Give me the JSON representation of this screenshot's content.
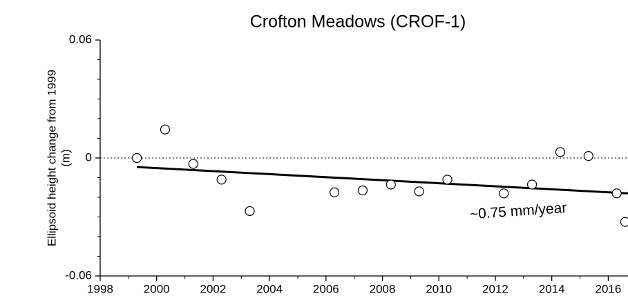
{
  "chart_data": {
    "type": "scatter",
    "title": "Crofton Meadows (CROF-1)",
    "ylabel": [
      "Ellipsoid height change from 1999",
      "(m)"
    ],
    "annotation": "~0.75 mm/year",
    "x": [
      1999.3,
      2000.3,
      2001.3,
      2002.3,
      2003.3,
      2006.3,
      2007.3,
      2008.3,
      2009.3,
      2010.3,
      2012.3,
      2013.3,
      2014.3,
      2015.3,
      2016.3,
      2016.6
    ],
    "values": [
      0.0,
      0.0145,
      -0.003,
      -0.011,
      -0.027,
      -0.0175,
      -0.0165,
      -0.0135,
      -0.017,
      -0.011,
      -0.018,
      -0.0135,
      0.003,
      0.001,
      -0.018,
      -0.0325
    ],
    "trend": {
      "x": [
        1999.3,
        2016.7
      ],
      "values": [
        -0.0046,
        -0.018
      ]
    },
    "reference_line": 0,
    "xlim": [
      1998,
      2016.7
    ],
    "ylim": [
      -0.06,
      0.06
    ],
    "xticks": [
      1998,
      2000,
      2002,
      2004,
      2006,
      2008,
      2010,
      2012,
      2014,
      2016
    ],
    "xminorticks": [
      1999,
      2001,
      2003,
      2005,
      2007,
      2009,
      2011,
      2013,
      2015
    ],
    "yticks": [
      -0.06,
      0,
      0.06
    ],
    "yminorticks": [
      -0.05,
      -0.04,
      -0.03,
      -0.02,
      -0.01,
      0.01,
      0.02,
      0.03,
      0.04,
      0.05
    ],
    "marker_color": "#000000"
  }
}
